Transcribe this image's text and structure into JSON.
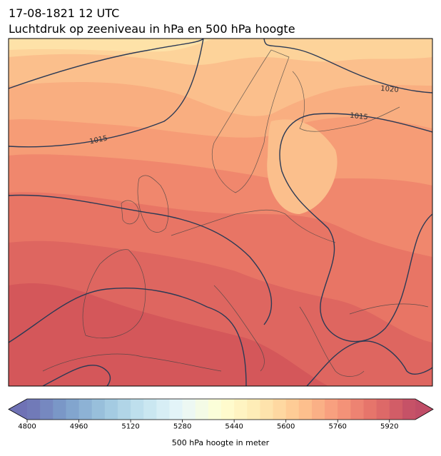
{
  "header": {
    "title": "17-08-1821 12 UTC",
    "subtitle": "Luchtdruk op zeeniveau in hPa en 500 hPa hoogte"
  },
  "map": {
    "isobar_labels": [
      "1015",
      "1015",
      "1020"
    ]
  },
  "colorbar": {
    "label": "500 hPa hoogte in meter",
    "lim": [
      4800,
      6000
    ],
    "ticks": [
      4800,
      4960,
      5120,
      5280,
      5440,
      5600,
      5760,
      5920
    ]
  }
}
